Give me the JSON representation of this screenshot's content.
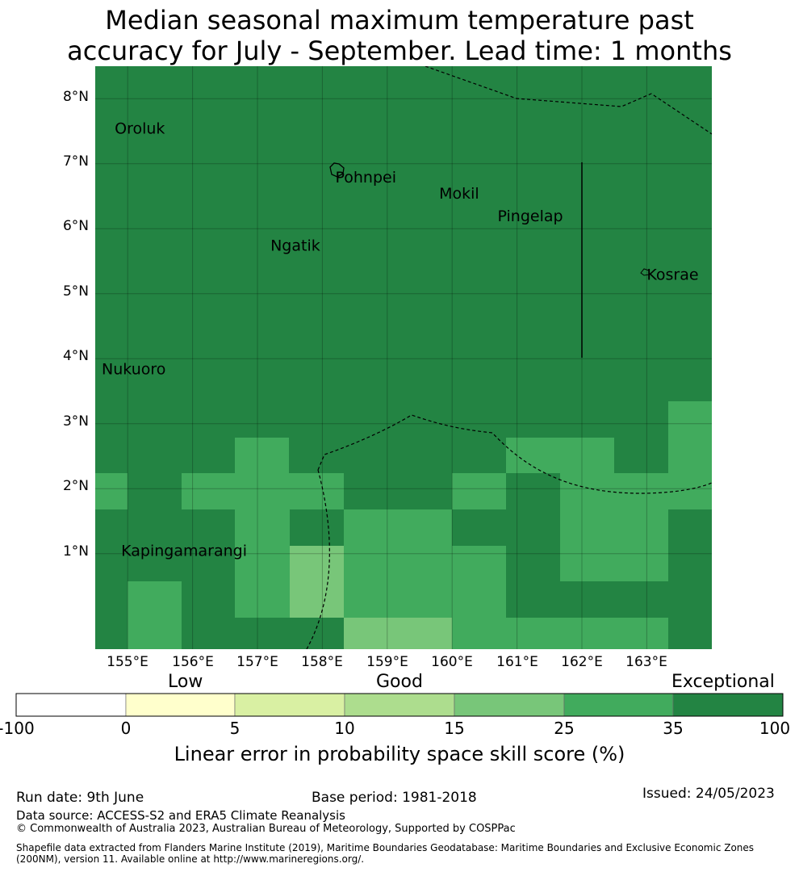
{
  "title_line1": "Median seasonal maximum temperature past",
  "title_line2": "accuracy for July - September. Lead time: 1 months",
  "lat_labels": [
    "8°N",
    "7°N",
    "6°N",
    "5°N",
    "4°N",
    "3°N",
    "2°N",
    "1°N"
  ],
  "lon_labels": [
    "155°E",
    "156°E",
    "157°E",
    "158°E",
    "159°E",
    "160°E",
    "161°E",
    "162°E",
    "163°E"
  ],
  "places": [
    {
      "name": "Oroluk",
      "lon": 154.8,
      "lat": 7.55
    },
    {
      "name": "Pohnpei",
      "lon": 158.2,
      "lat": 6.8
    },
    {
      "name": "Mokil",
      "lon": 159.8,
      "lat": 6.55
    },
    {
      "name": "Pingelap",
      "lon": 160.7,
      "lat": 6.2
    },
    {
      "name": "Ngatik",
      "lon": 157.2,
      "lat": 5.75
    },
    {
      "name": "Kosrae",
      "lon": 163.0,
      "lat": 5.3
    },
    {
      "name": "Nukuoro",
      "lon": 154.6,
      "lat": 3.85
    },
    {
      "name": "Kapingamarangi",
      "lon": 154.9,
      "lat": 1.05
    }
  ],
  "colorbar": {
    "categories": [
      "Low",
      "Good",
      "Exceptional"
    ],
    "ticks": [
      "-100",
      "0",
      "5",
      "10",
      "15",
      "25",
      "35",
      "100"
    ],
    "colors": [
      "#ffffff",
      "#ffffcc",
      "#d9f0a3",
      "#addd8e",
      "#78c679",
      "#41ab5d",
      "#238443"
    ],
    "label": "Linear error in probability space skill score (%)"
  },
  "grid_cell_colors": {
    "c35_100": "#238443",
    "c25_35": "#41ab5d",
    "c15_25": "#78c679"
  },
  "footer": {
    "run_date": "Run date: 9th June",
    "base_period": "Base period: 1981-2018",
    "issued": "Issued: 24/05/2023",
    "data_source": "Data source: ACCESS-S2 and ERA5 Climate Reanalysis",
    "copyright": "© Commonwealth of Australia 2023, Australian Bureau of Meteorology, Supported by COSPPac",
    "shapefile_line1": "Shapefile data extracted from Flanders Marine Institute (2019), Maritime Boundaries Geodatabase: Maritime Boundaries and Exclusive Economic Zones",
    "shapefile_line2": "(200NM), version 11. Available online at http://www.marineregions.org/."
  }
}
